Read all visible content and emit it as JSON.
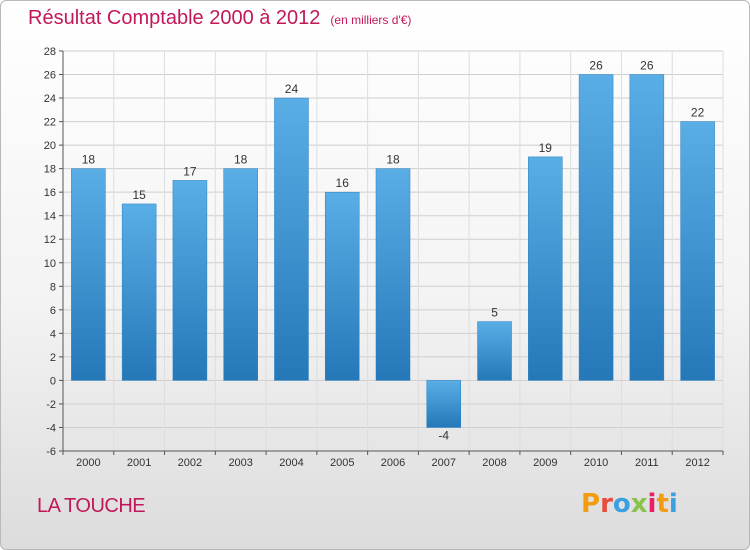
{
  "chart_data": {
    "type": "bar",
    "title": "Résultat Comptable 2000 à 2012",
    "unit": "(en milliers d'€)",
    "categories": [
      "2000",
      "2001",
      "2002",
      "2003",
      "2004",
      "2005",
      "2006",
      "2007",
      "2008",
      "2009",
      "2010",
      "2011",
      "2012"
    ],
    "values": [
      18,
      15,
      17,
      18,
      24,
      16,
      18,
      -4,
      5,
      19,
      26,
      26,
      22
    ],
    "ylim": [
      -6,
      28
    ],
    "yticks": [
      -6,
      -4,
      -2,
      0,
      2,
      4,
      6,
      8,
      10,
      12,
      14,
      16,
      18,
      20,
      22,
      24,
      26,
      28
    ],
    "xlabel": "",
    "ylabel": "",
    "grid": true,
    "bar_color_top": "#5aaee6",
    "bar_color_bottom": "#2578b8"
  },
  "commune": "LA TOUCHE",
  "logo": {
    "letters": [
      "P",
      "r",
      "o",
      "x",
      "i",
      "t",
      "i"
    ],
    "colors": [
      "#f39c12",
      "#e84c3d",
      "#3aa0e0",
      "#8bc34a",
      "#e91e63",
      "#f39c12",
      "#3aa0e0"
    ]
  }
}
